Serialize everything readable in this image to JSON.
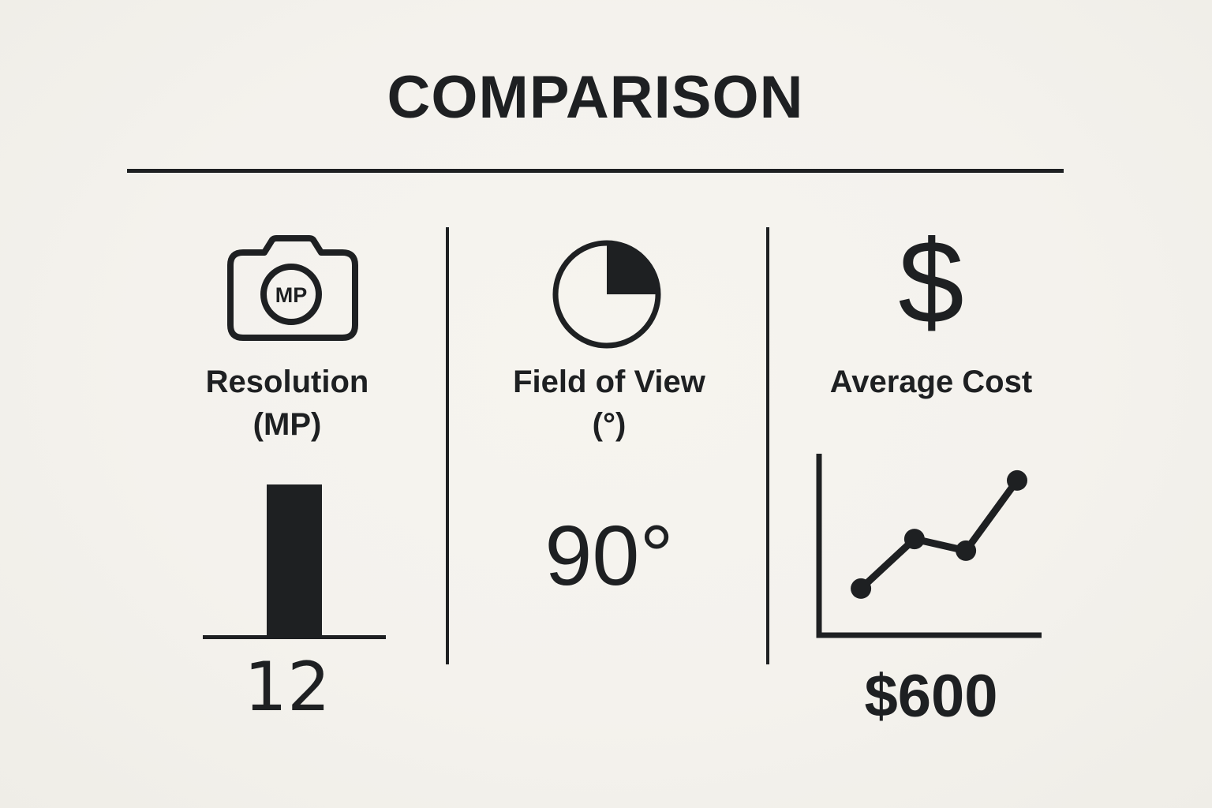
{
  "title": "COMPARISON",
  "colors": {
    "background": "#f4f2ed",
    "ink": "#1e2022"
  },
  "columns": [
    {
      "icon": "camera-mp-icon",
      "icon_label": "MP",
      "label_line1": "Resolution",
      "label_line2": "(MP)",
      "value": "12"
    },
    {
      "icon": "pie-quarter-icon",
      "label_line1": "Field of View",
      "label_line2": "(°)",
      "value": "90°"
    },
    {
      "icon": "dollar-icon",
      "icon_label": "$",
      "label_line1": "Average Cost",
      "label_line2": "",
      "value": "$600"
    }
  ],
  "chart_data": [
    {
      "type": "bar",
      "title": "Resolution (MP)",
      "categories": [
        "Resolution"
      ],
      "values": [
        12
      ],
      "ylim": [
        0,
        12
      ],
      "value_label": "12",
      "style": "single solid bar sitting on a plain baseline, no ticks or gridlines"
    },
    {
      "type": "pie",
      "title": "Field of View (°)",
      "categories": [
        "Field of View",
        "Remainder"
      ],
      "values": [
        90,
        270
      ],
      "value_label": "90°",
      "style": "outlined circle with the top-right quarter wedge filled, starting at 12 o'clock"
    },
    {
      "type": "line",
      "title": "Average Cost ($)",
      "x": [
        1,
        2,
        3,
        4
      ],
      "y_estimated": [
        180,
        375,
        330,
        600
      ],
      "points_frac": [
        [
          0.207,
          0.674
        ],
        [
          0.437,
          0.436
        ],
        [
          0.658,
          0.492
        ],
        [
          0.878,
          0.155
        ]
      ],
      "value_label": "$600",
      "style": "icon-style upward trend line with 4 dots and L-shaped axes, no tick labels"
    }
  ]
}
